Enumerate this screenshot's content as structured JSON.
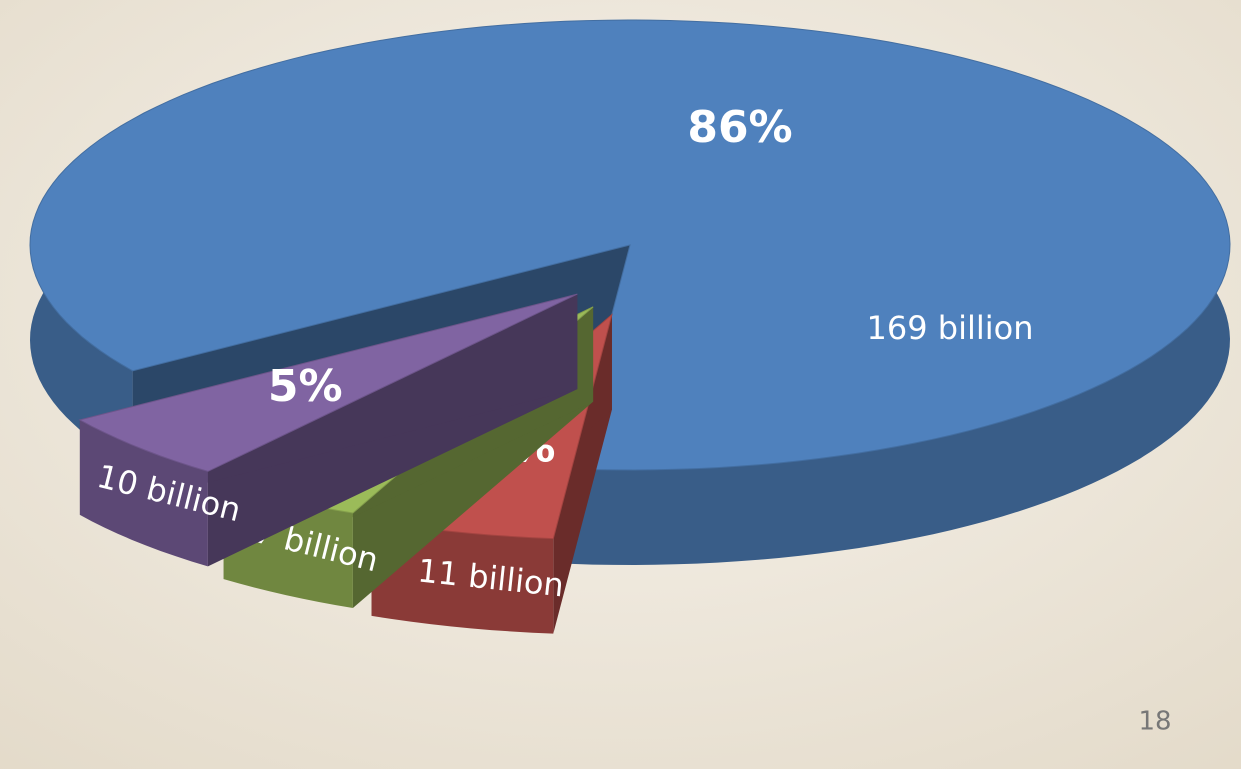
{
  "chart_data": {
    "type": "pie",
    "values": [
      86,
      5,
      4,
      5
    ],
    "value_labels": [
      "86%",
      "5%",
      "4%",
      "5%"
    ],
    "amounts": [
      169,
      11,
      7,
      10
    ],
    "amount_labels": [
      "169 billion",
      "11 billion",
      "7 billion",
      "10 billion"
    ],
    "colors": [
      "#4f81bd",
      "#c0504d",
      "#9bbb59",
      "#8064a2"
    ]
  },
  "slide_number": "18"
}
